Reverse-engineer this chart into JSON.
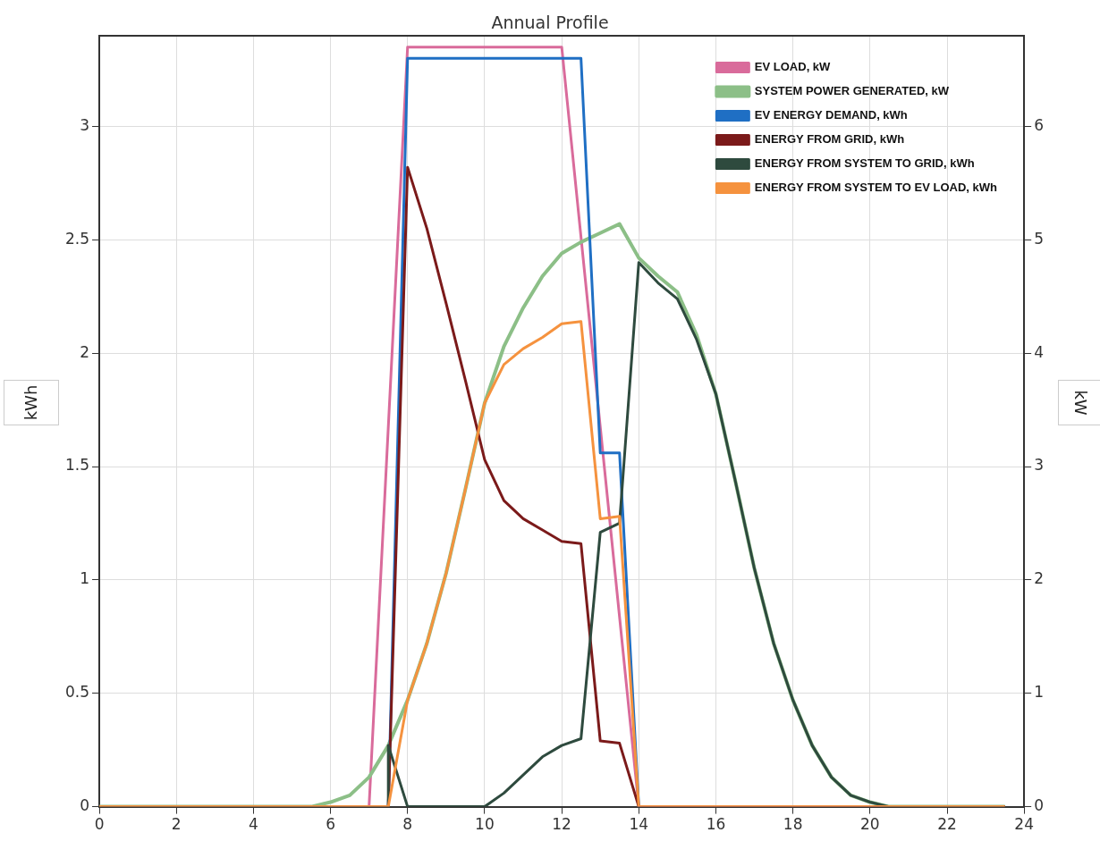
{
  "chart_data": {
    "type": "line",
    "title": "Annual Profile",
    "ylabel": "kWh",
    "y2label": "kW",
    "xlim": [
      0,
      24
    ],
    "xticks": [
      0,
      2,
      4,
      6,
      8,
      10,
      12,
      14,
      16,
      18,
      20,
      22,
      24
    ],
    "ylim": [
      0,
      3.4
    ],
    "yticks": [
      0,
      0.5,
      1,
      1.5,
      2,
      2.5,
      3
    ],
    "y2lim": [
      0,
      6.8
    ],
    "y2ticks": [
      0,
      1,
      2,
      3,
      4,
      5,
      6
    ],
    "grid": true,
    "legend": "top right",
    "marker": "none",
    "line_style": "solid",
    "series": [
      {
        "name": "EV LOAD, kW",
        "color": "#d96b9b",
        "axis": "y2",
        "x": [
          0,
          7,
          8,
          12,
          14,
          23.5
        ],
        "values": [
          0,
          0,
          6.7,
          6.7,
          0,
          0
        ]
      },
      {
        "name": "SYSTEM POWER GENERATED, kW",
        "color": "#8cbf87",
        "axis": "y2",
        "x": [
          0,
          5.5,
          6,
          6.5,
          7,
          7.5,
          8,
          8.5,
          9,
          9.5,
          10,
          10.5,
          11,
          11.5,
          12,
          12.5,
          13,
          13.5,
          14,
          14.5,
          15,
          15.5,
          16,
          16.5,
          17,
          17.5,
          18,
          18.5,
          19,
          19.5,
          20,
          20.5,
          23.5
        ],
        "values": [
          0,
          0,
          0.04,
          0.1,
          0.26,
          0.54,
          0.94,
          1.44,
          2.06,
          2.8,
          3.56,
          4.06,
          4.4,
          4.68,
          4.88,
          4.98,
          5.06,
          5.14,
          4.84,
          4.68,
          4.54,
          4.16,
          3.64,
          2.88,
          2.1,
          1.44,
          0.94,
          0.54,
          0.26,
          0.1,
          0.04,
          0,
          0
        ]
      },
      {
        "name": "EV ENERGY DEMAND, kWh",
        "color": "#1f6fc4",
        "x": [
          0,
          7.5,
          8,
          12.5,
          13,
          13.5,
          14,
          23.5
        ],
        "values": [
          0,
          0,
          3.3,
          3.3,
          1.56,
          1.56,
          0,
          0
        ]
      },
      {
        "name": "ENERGY FROM GRID, kWh",
        "color": "#7b1a1a",
        "x": [
          0,
          7.5,
          8,
          8.5,
          9,
          9.5,
          10,
          10.5,
          11,
          11.5,
          12,
          12.5,
          13,
          13.5,
          14,
          23.5
        ],
        "values": [
          0,
          0,
          2.82,
          2.55,
          2.22,
          1.88,
          1.53,
          1.35,
          1.27,
          1.22,
          1.17,
          1.16,
          0.29,
          0.28,
          0,
          0
        ]
      },
      {
        "name": "ENERGY FROM SYSTEM TO GRID, kWh",
        "color": "#2e4a3e",
        "x": [
          0,
          7.5,
          7.5,
          8,
          10,
          10.5,
          11,
          11.5,
          12,
          12.5,
          13,
          13.5,
          14,
          14.5,
          15,
          15.5,
          16,
          16.5,
          17,
          17.5,
          18,
          18.5,
          19,
          19.5,
          20,
          20.5,
          23.5
        ],
        "values": [
          0,
          0,
          0.27,
          0,
          0,
          0.06,
          0.14,
          0.22,
          0.27,
          0.3,
          1.21,
          1.25,
          2.4,
          2.31,
          2.24,
          2.06,
          1.82,
          1.44,
          1.05,
          0.72,
          0.47,
          0.27,
          0.13,
          0.05,
          0.02,
          0,
          0
        ]
      },
      {
        "name": "ENERGY FROM SYSTEM TO EV LOAD, kWh",
        "color": "#f5923e",
        "x": [
          0,
          7.5,
          8,
          8.5,
          9,
          9.5,
          10,
          10.5,
          11,
          11.5,
          12,
          12.5,
          13,
          13.5,
          14,
          23.5
        ],
        "values": [
          0,
          0,
          0.47,
          0.72,
          1.03,
          1.4,
          1.78,
          1.95,
          2.02,
          2.07,
          2.13,
          2.14,
          1.27,
          1.28,
          0,
          0
        ]
      }
    ]
  }
}
